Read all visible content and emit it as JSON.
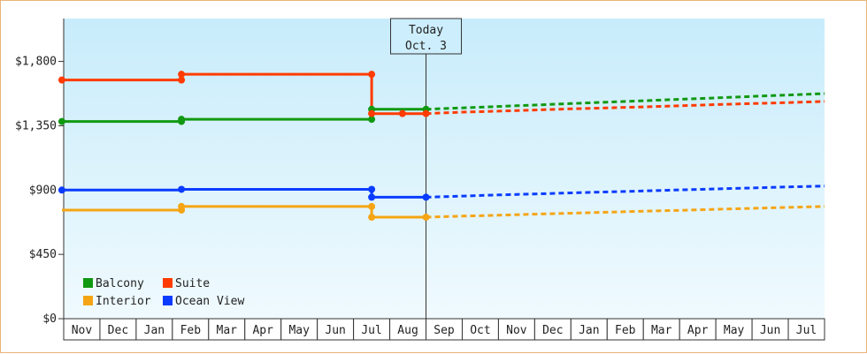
{
  "chart_data": {
    "type": "line",
    "x_categories": [
      "Nov",
      "Dec",
      "Jan",
      "Feb",
      "Mar",
      "Apr",
      "May",
      "Jun",
      "Jul",
      "Aug",
      "Sep",
      "Oct",
      "Nov",
      "Dec",
      "Jan",
      "Feb",
      "Mar",
      "Apr",
      "May",
      "Jun",
      "Jul"
    ],
    "y_ticks": [
      "$0",
      "$450",
      "$900",
      "$1,350",
      "$1,800"
    ],
    "ylim": [
      0,
      2100
    ],
    "today_label": [
      "Today",
      "Oct. 3"
    ],
    "today_x": 10.0,
    "legend_placement": "bottom-left",
    "series": [
      {
        "name": "Balcony",
        "color": "#119911",
        "observed": [
          [
            -0.05,
            1380
          ],
          [
            3.25,
            1380
          ],
          [
            3.25,
            1395
          ],
          [
            8.5,
            1395
          ],
          [
            8.5,
            1465
          ],
          [
            10.0,
            1465
          ]
        ],
        "forecast": [
          [
            10.0,
            1465
          ],
          [
            11,
            1475
          ],
          [
            12,
            1485
          ],
          [
            13,
            1495
          ],
          [
            14,
            1505
          ],
          [
            15,
            1515
          ],
          [
            16,
            1525
          ],
          [
            17,
            1535
          ],
          [
            18,
            1545
          ],
          [
            19,
            1555
          ],
          [
            20,
            1565
          ],
          [
            21.0,
            1575
          ]
        ]
      },
      {
        "name": "Suite",
        "color": "#ff3b00",
        "observed": [
          [
            -0.05,
            1670
          ],
          [
            3.25,
            1670
          ],
          [
            3.25,
            1710
          ],
          [
            8.5,
            1710
          ],
          [
            8.5,
            1435
          ],
          [
            10.0,
            1435
          ]
        ],
        "forecast": [
          [
            10.0,
            1435
          ],
          [
            11,
            1445
          ],
          [
            12,
            1452
          ],
          [
            13,
            1460
          ],
          [
            14,
            1468
          ],
          [
            15,
            1475
          ],
          [
            16,
            1482
          ],
          [
            17,
            1490
          ],
          [
            18,
            1498
          ],
          [
            19,
            1505
          ],
          [
            20,
            1512
          ],
          [
            21.0,
            1520
          ]
        ]
      },
      {
        "name": "Interior",
        "color": "#f5a514",
        "observed": [
          [
            -0.05,
            760
          ],
          [
            3.25,
            760
          ],
          [
            3.25,
            785
          ],
          [
            8.5,
            785
          ],
          [
            8.5,
            710
          ],
          [
            10.0,
            710
          ]
        ],
        "forecast": [
          [
            10.0,
            710
          ],
          [
            11,
            718
          ],
          [
            12,
            724
          ],
          [
            13,
            731
          ],
          [
            14,
            738
          ],
          [
            15,
            745
          ],
          [
            16,
            752
          ],
          [
            17,
            758
          ],
          [
            18,
            765
          ],
          [
            19,
            772
          ],
          [
            20,
            779
          ],
          [
            21.0,
            785
          ]
        ]
      },
      {
        "name": "Ocean View",
        "color": "#0a3cff",
        "observed": [
          [
            -0.05,
            900
          ],
          [
            3.25,
            900
          ],
          [
            3.25,
            905
          ],
          [
            8.5,
            905
          ],
          [
            8.5,
            850
          ],
          [
            10.0,
            850
          ]
        ],
        "forecast": [
          [
            10.0,
            850
          ],
          [
            11,
            858
          ],
          [
            12,
            866
          ],
          [
            13,
            873
          ],
          [
            14,
            880
          ],
          [
            15,
            887
          ],
          [
            16,
            894
          ],
          [
            17,
            901
          ],
          [
            18,
            908
          ],
          [
            19,
            915
          ],
          [
            20,
            922
          ],
          [
            21.0,
            928
          ]
        ]
      }
    ],
    "markers": [
      {
        "series": "Balcony",
        "points": [
          [
            -0.05,
            1380
          ],
          [
            3.25,
            1380
          ],
          [
            3.25,
            1395
          ],
          [
            8.5,
            1395
          ],
          [
            8.5,
            1465
          ],
          [
            10.0,
            1465
          ]
        ]
      },
      {
        "series": "Suite",
        "points": [
          [
            -0.05,
            1670
          ],
          [
            3.25,
            1670
          ],
          [
            3.25,
            1710
          ],
          [
            8.5,
            1710
          ],
          [
            8.5,
            1435
          ],
          [
            9.35,
            1435
          ],
          [
            10.0,
            1435
          ]
        ]
      },
      {
        "series": "Interior",
        "points": [
          [
            3.25,
            760
          ],
          [
            3.25,
            785
          ],
          [
            8.5,
            785
          ],
          [
            8.5,
            710
          ],
          [
            10.0,
            710
          ]
        ]
      },
      {
        "series": "Ocean View",
        "points": [
          [
            -0.05,
            900
          ],
          [
            3.25,
            905
          ],
          [
            8.5,
            905
          ],
          [
            8.5,
            850
          ],
          [
            10.0,
            850
          ]
        ]
      }
    ]
  }
}
